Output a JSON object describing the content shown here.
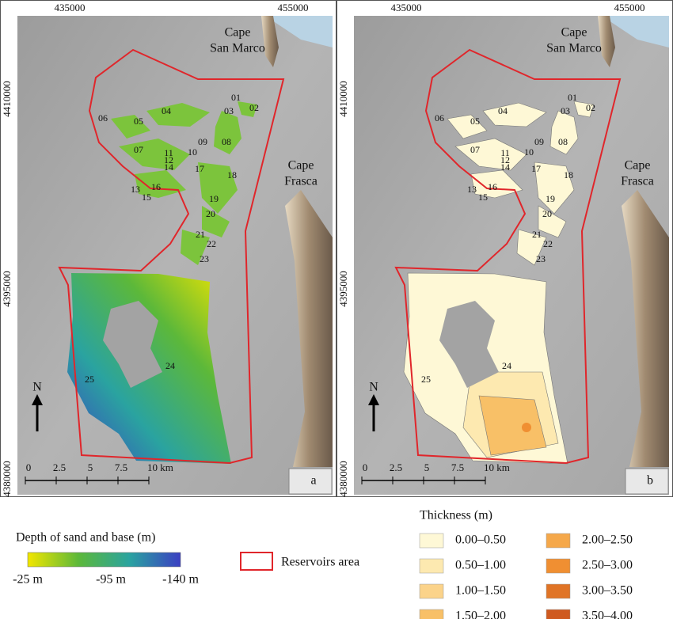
{
  "map": {
    "x_ticks": [
      "435000",
      "455000"
    ],
    "y_ticks": [
      "4410000",
      "4395000",
      "4380000"
    ],
    "places": [
      {
        "lines": [
          "Cape",
          "San Marco"
        ]
      },
      {
        "lines": [
          "Cape",
          "Frasca"
        ]
      }
    ],
    "zones": [
      "01",
      "02",
      "03",
      "04",
      "05",
      "06",
      "07",
      "08",
      "09",
      "10",
      "11",
      "12",
      "13",
      "14",
      "15",
      "16",
      "17",
      "18",
      "19",
      "20",
      "21",
      "22",
      "23",
      "24",
      "25"
    ],
    "north": "N",
    "scale": [
      "0",
      "2.5",
      "5",
      "7.5",
      "10 km"
    ]
  },
  "panels": [
    {
      "label": "a",
      "fill": "depth"
    },
    {
      "label": "b",
      "fill": "thickness"
    }
  ],
  "legend": {
    "depth": {
      "title": "Depth of sand and base (m)",
      "labels": [
        "-25 m",
        "-95 m",
        "-140 m"
      ],
      "colors": [
        "#f2e600",
        "#5cb83a",
        "#2aa3a0",
        "#3b3fc2"
      ]
    },
    "reservoirs": {
      "label": "Reservoirs area",
      "color": "#e0262b"
    },
    "thickness": {
      "title": "Thickness (m)",
      "classes": [
        {
          "label": "0.00–0.50",
          "color": "#fef8d6"
        },
        {
          "label": "0.50–1.00",
          "color": "#fde9b0"
        },
        {
          "label": "1.00–1.50",
          "color": "#fbd38a"
        },
        {
          "label": "1.50–2.00",
          "color": "#f8c067"
        },
        {
          "label": "2.00–2.50",
          "color": "#f5a84a"
        },
        {
          "label": "2.50–3.00",
          "color": "#f08f32"
        },
        {
          "label": "3.00–3.50",
          "color": "#e07426"
        },
        {
          "label": "3.50–4.00",
          "color": "#cf5a20"
        }
      ]
    }
  }
}
